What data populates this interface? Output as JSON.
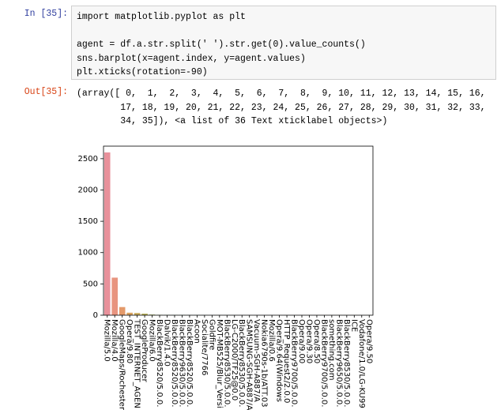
{
  "input_prompt": "In  [35]:",
  "code_blocks": [
    [
      "import matplotlib.pyplot as plt"
    ],
    [
      "agent = df.a.str.split(' ').str.get(0).value_counts()",
      "sns.barplot(x=agent.index, y=agent.values)",
      "plt.xticks(rotation=-90)"
    ]
  ],
  "output_prompt": "Out[35]:",
  "output": [
    "(array([ 0,  1,  2,  3,  4,  5,  6,  7,  8,  9, 10, 11, 12, 13, 14, 15, 16,",
    "        17, 18, 19, 20, 21, 22, 23, 24, 25, 26, 27, 28, 29, 30, 31, 32, 33,",
    "        34, 35]), <a list of 36 Text xticklabel objects>)"
  ],
  "chart_data": {
    "type": "bar",
    "categories": [
      "Mozilla/5.0",
      "Mozilla/4.0",
      "GoogleMaps/Rochester",
      "Opera/9.80",
      "TEST_INTERNET_AGEN",
      "GoogleProducer",
      "Mozilla/6.0",
      "BlackBerry8520/5.0.0.",
      "Dalvik/1.4.0",
      "BlackBerry8520/5.0.0.",
      "BlackBerry9630/5.0.0.",
      "BlackBerry8520/5.0.0.",
      "Acoon",
      "Socialite/7766",
      "Goldfire",
      "MOT-MB525/Blur_Versi",
      "BlackBerry8530/5.0.0.",
      "LG-C2000/TF25@0.0",
      "BlackBerry8530/5.0.0.",
      "SAMSUNG-SGH-A887/A",
      "Vacuum-SGH-A887/A",
      "Nokia6790s-1b/ATT.03",
      "Mozilla/0.6",
      "Opera/9.64(Windows",
      "HTTP_Request2/2.0.0",
      "BlackBerry9700/5.0.0.",
      "Opera/9.00",
      "Opera/9.30",
      "Opera/8.50",
      "BlackBerry9700/5.0.0.",
      "something.com",
      "BlackBerry9650/5.0.0.",
      "BlackBerry8530/5.0.0.",
      "ICE",
      "Vodafone/1.0/LG-KU99",
      "Opera/9.50"
    ],
    "values": [
      2600,
      600,
      130,
      40,
      35,
      25,
      10,
      5,
      4,
      3,
      3,
      2,
      2,
      2,
      1,
      1,
      1,
      1,
      1,
      1,
      1,
      1,
      1,
      1,
      1,
      1,
      1,
      1,
      1,
      1,
      1,
      1,
      1,
      1,
      1,
      1
    ],
    "colors": [
      "#e8919b",
      "#e8947f",
      "#e49a6a",
      "#d9a25e",
      "#c9aa5a",
      "#b7b15a",
      "#a3b65c",
      "#8cba62",
      "#73bd6d",
      "#5dbf7c",
      "#54bf8c",
      "#55bf9c",
      "#57bdab",
      "#5abbb8",
      "#5eb8c4",
      "#64b4cf",
      "#6eafd8",
      "#7ba9e0",
      "#8aa3e6",
      "#9b9de9",
      "#ab97ea",
      "#bb92e8",
      "#c98ee3",
      "#d68bdc",
      "#e08ad3",
      "#e78bc8",
      "#eb8dbc",
      "#ec90b0",
      "#ea92a5",
      "#e8919b",
      "#e6947a",
      "#dc9e62",
      "#c8aa58",
      "#a9b45a",
      "#86bb64",
      "#62be78"
    ],
    "ylim": [
      0,
      2700
    ],
    "yticks": [
      0,
      500,
      1000,
      1500,
      2000,
      2500
    ]
  }
}
